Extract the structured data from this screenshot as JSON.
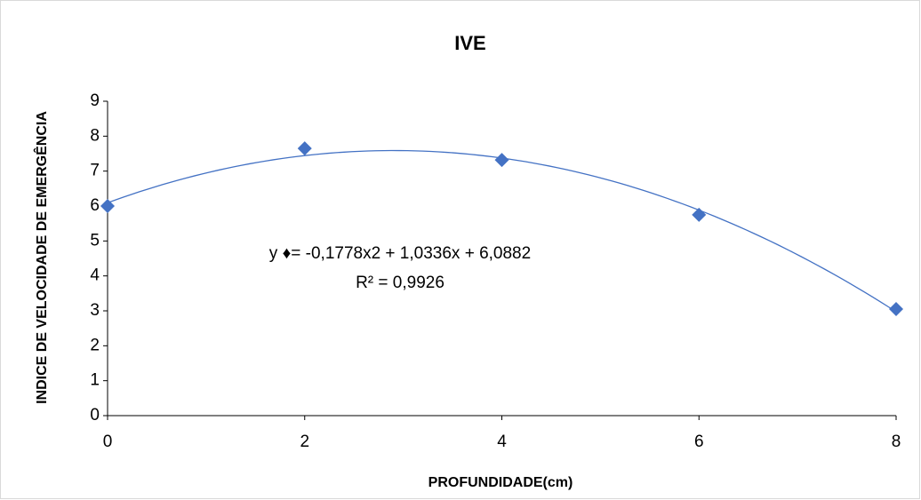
{
  "chart_data": {
    "type": "scatter",
    "title": "IVE",
    "x_label": "PROFUNDIDADE(cm)",
    "y_label": "INDICE DE VELOCIDADE DE EMERGÊNCIA",
    "x": [
      0,
      2,
      4,
      6,
      8
    ],
    "values": [
      6.0,
      7.65,
      7.32,
      5.75,
      3.05
    ],
    "color": "#4472c4",
    "marker": "diamond",
    "trendline": "polynomial",
    "trendline_order": 2,
    "annotations": [
      "y ♦= -0,1778x2 + 1,0336x + 6,0882",
      "R² = 0,9926"
    ],
    "xlim": [
      0,
      8
    ],
    "xticks": [
      0,
      2,
      4,
      6,
      8
    ],
    "ylim": [
      0,
      9
    ],
    "yticks": [
      0,
      1,
      2,
      3,
      4,
      5,
      6,
      7,
      8,
      9
    ],
    "grid": false
  }
}
